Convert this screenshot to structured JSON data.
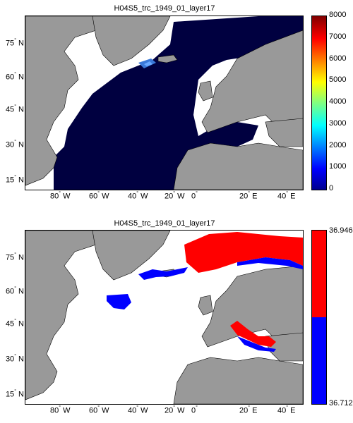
{
  "panels": [
    {
      "title": "H04S5_trc_1949_01_layer17",
      "colorbar": {
        "type": "jet",
        "ticks": [
          "0",
          "1000",
          "2000",
          "3000",
          "4000",
          "5000",
          "6000",
          "7000",
          "8000"
        ],
        "min": 0,
        "max": 8000
      },
      "lat_labels": [
        "75",
        "60",
        "45",
        "30",
        "15"
      ],
      "lon_labels": [
        "80",
        "60",
        "40",
        "20",
        "0",
        "20",
        "40"
      ],
      "lon_dirs": [
        "W",
        "W",
        "W",
        "W",
        "",
        "E",
        "E"
      ],
      "lat_dir": "N"
    },
    {
      "title": "H04S5_trc_1949_01_layer17",
      "colorbar": {
        "type": "binary",
        "top_label": "36.946",
        "bottom_label": "36.712",
        "colors": [
          "#ff0000",
          "#0000ff"
        ]
      },
      "lat_labels": [
        "75",
        "60",
        "45",
        "30",
        "15"
      ],
      "lon_labels": [
        "80",
        "60",
        "40",
        "20",
        "0",
        "20",
        "40"
      ],
      "lon_dirs": [
        "W",
        "W",
        "W",
        "W",
        "",
        "E",
        "E"
      ],
      "lat_dir": "N"
    }
  ],
  "colors": {
    "land": "#999999",
    "ocean_top": "#000040",
    "ocean_bottom": "#ffffff",
    "high": "#ff0000",
    "low": "#0000ff"
  }
}
